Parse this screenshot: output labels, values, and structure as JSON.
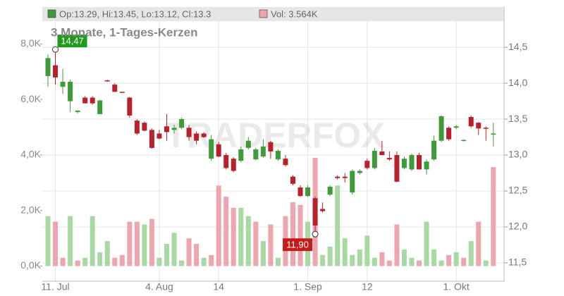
{
  "chart_data": {
    "type": "candlestick",
    "title": "3 Monate, 1-Tages-Kerzen",
    "ohlc_header": "Op:13.29, Hi:13.45, Lo:13.12, Cl:13.3",
    "volume_header": "Vol: 3.564K",
    "watermark": "TRADERFOX",
    "up_color": "#3f9a3a",
    "down_color": "#b8202a",
    "volume_up_color": "#a9d9a2",
    "volume_down_color": "#eda6ae",
    "categories": [
      null,
      "11. Jul",
      null,
      null,
      null,
      null,
      null,
      null,
      null,
      null,
      null,
      null,
      null,
      null,
      null,
      "4. Aug",
      null,
      null,
      null,
      null,
      null,
      null,
      null,
      "14",
      null,
      null,
      null,
      null,
      null,
      null,
      null,
      null,
      null,
      null,
      null,
      "1. Sep",
      null,
      null,
      null,
      null,
      null,
      null,
      null,
      "12",
      null,
      null,
      null,
      null,
      null,
      null,
      null,
      null,
      null,
      null,
      null,
      "1. Okt",
      null,
      null,
      null,
      null,
      null
    ],
    "open": [
      14.1,
      14.25,
      13.95,
      13.75,
      13.6,
      13.8,
      13.8,
      13.57,
      14.04,
      13.98,
      13.88,
      13.8,
      13.48,
      13.45,
      13.35,
      13.3,
      13.4,
      13.35,
      13.38,
      13.38,
      13.3,
      13.3,
      12.95,
      13.15,
      13.0,
      12.95,
      12.92,
      13.1,
      12.94,
      12.98,
      13.18,
      12.94,
      12.95,
      12.7,
      12.55,
      12.43,
      12.4,
      12.25,
      12.45,
      12.7,
      12.7,
      12.48,
      12.75,
      12.92,
      12.82,
      13.05,
      12.96,
      13.0,
      12.82,
      12.8,
      13.0,
      12.8,
      12.94,
      13.2,
      13.38,
      13.38,
      13.2,
      13.53,
      13.45,
      13.38,
      13.29
    ],
    "high": [
      14.4,
      14.47,
      14.2,
      14.05,
      13.62,
      13.82,
      13.82,
      13.77,
      14.05,
      14.0,
      13.88,
      13.81,
      13.5,
      13.47,
      13.37,
      13.35,
      13.57,
      13.42,
      13.52,
      13.42,
      13.33,
      13.32,
      13.28,
      13.18,
      13.03,
      12.97,
      13.12,
      13.25,
      13.1,
      13.22,
      13.2,
      13.08,
      13.0,
      12.72,
      12.58,
      12.58,
      12.42,
      12.34,
      12.58,
      12.72,
      12.75,
      12.8,
      12.8,
      12.95,
      13.1,
      13.2,
      13.05,
      13.05,
      12.98,
      13.02,
      13.03,
      12.94,
      13.27,
      13.55,
      13.4,
      13.42,
      13.22,
      13.55,
      13.46,
      13.4,
      13.45
    ],
    "low": [
      13.95,
      13.98,
      13.85,
      13.6,
      13.58,
      13.72,
      13.7,
      13.57,
      14.02,
      13.88,
      13.87,
      13.52,
      13.28,
      13.33,
      13.09,
      13.22,
      13.2,
      13.3,
      13.36,
      13.2,
      13.15,
      13.24,
      12.92,
      12.97,
      12.8,
      12.76,
      12.9,
      13.08,
      12.93,
      12.96,
      12.95,
      12.92,
      12.84,
      12.58,
      12.42,
      12.42,
      11.9,
      12.2,
      12.43,
      12.66,
      12.62,
      12.45,
      12.73,
      12.8,
      12.8,
      13.0,
      12.92,
      12.62,
      12.8,
      12.78,
      12.8,
      12.73,
      12.92,
      13.18,
      13.2,
      13.36,
      13.19,
      13.38,
      13.28,
      13.2,
      13.12
    ],
    "close": [
      14.35,
      14.08,
      14.02,
      14.02,
      13.62,
      13.72,
      13.72,
      13.76,
      14.03,
      13.88,
      13.87,
      13.55,
      13.3,
      13.34,
      13.1,
      13.23,
      13.32,
      13.38,
      13.5,
      13.25,
      13.2,
      13.25,
      13.22,
      12.98,
      12.82,
      12.78,
      13.08,
      13.2,
      13.08,
      13.12,
      13.05,
      13.06,
      12.86,
      12.6,
      12.43,
      12.55,
      12.02,
      12.22,
      12.56,
      12.68,
      12.68,
      12.78,
      12.78,
      12.82,
      13.06,
      13.0,
      12.94,
      12.63,
      12.95,
      13.0,
      12.8,
      12.91,
      13.2,
      13.54,
      13.22,
      13.4,
      13.21,
      13.4,
      13.37,
      13.37,
      13.3
    ],
    "series": [
      {
        "name": "Vol",
        "axis": "y2",
        "values": [
          1.8,
          1.6,
          0.3,
          1.8,
          0.2,
          0.3,
          1.8,
          0.5,
          0.9,
          0.3,
          0.4,
          1.6,
          1.6,
          1.5,
          1.7,
          0.3,
          0.8,
          1.2,
          0.2,
          1.0,
          0.8,
          0.3,
          0.4,
          2.9,
          2.5,
          2.1,
          2.1,
          1.8,
          1.6,
          0.9,
          1.5,
          0.3,
          1.8,
          2.3,
          2.2,
          1.6,
          3.9,
          0.4,
          0.7,
          2.9,
          1.0,
          0.4,
          0.6,
          1.1,
          0.3,
          0.5,
          0.2,
          1.5,
          0.6,
          0.3,
          0.2,
          1.6,
          0.6,
          0.2,
          0.4,
          0.5,
          0.3,
          0.9,
          1.6,
          0.2,
          3.564
        ]
      }
    ],
    "annotations": [
      {
        "label": "14,47",
        "value": 14.47,
        "color": "#1f9a1f"
      },
      {
        "label": "11,90",
        "value": 11.9,
        "color": "#c41b1b"
      }
    ],
    "ylim": [
      11.235,
      15.06
    ],
    "yticks": [
      {
        "value": 11.5,
        "label": "11,5"
      },
      {
        "value": 12,
        "label": "12,0"
      },
      {
        "value": 12.5,
        "label": "12,5"
      },
      {
        "value": 13,
        "label": "13,0"
      },
      {
        "value": 13.5,
        "label": "13,5"
      },
      {
        "value": 14,
        "label": "14,0"
      },
      {
        "value": 14.5,
        "label": "14,5"
      }
    ],
    "y2lim": [
      -0.57,
      9.33
    ],
    "y2ticks": [
      {
        "value": 0,
        "label": "0,0K"
      },
      {
        "value": 2,
        "label": "2,0K"
      },
      {
        "value": 4,
        "label": "4,0K"
      },
      {
        "value": 6,
        "label": "6,0K"
      },
      {
        "value": 8,
        "label": "8,0K"
      }
    ],
    "grid": true
  }
}
